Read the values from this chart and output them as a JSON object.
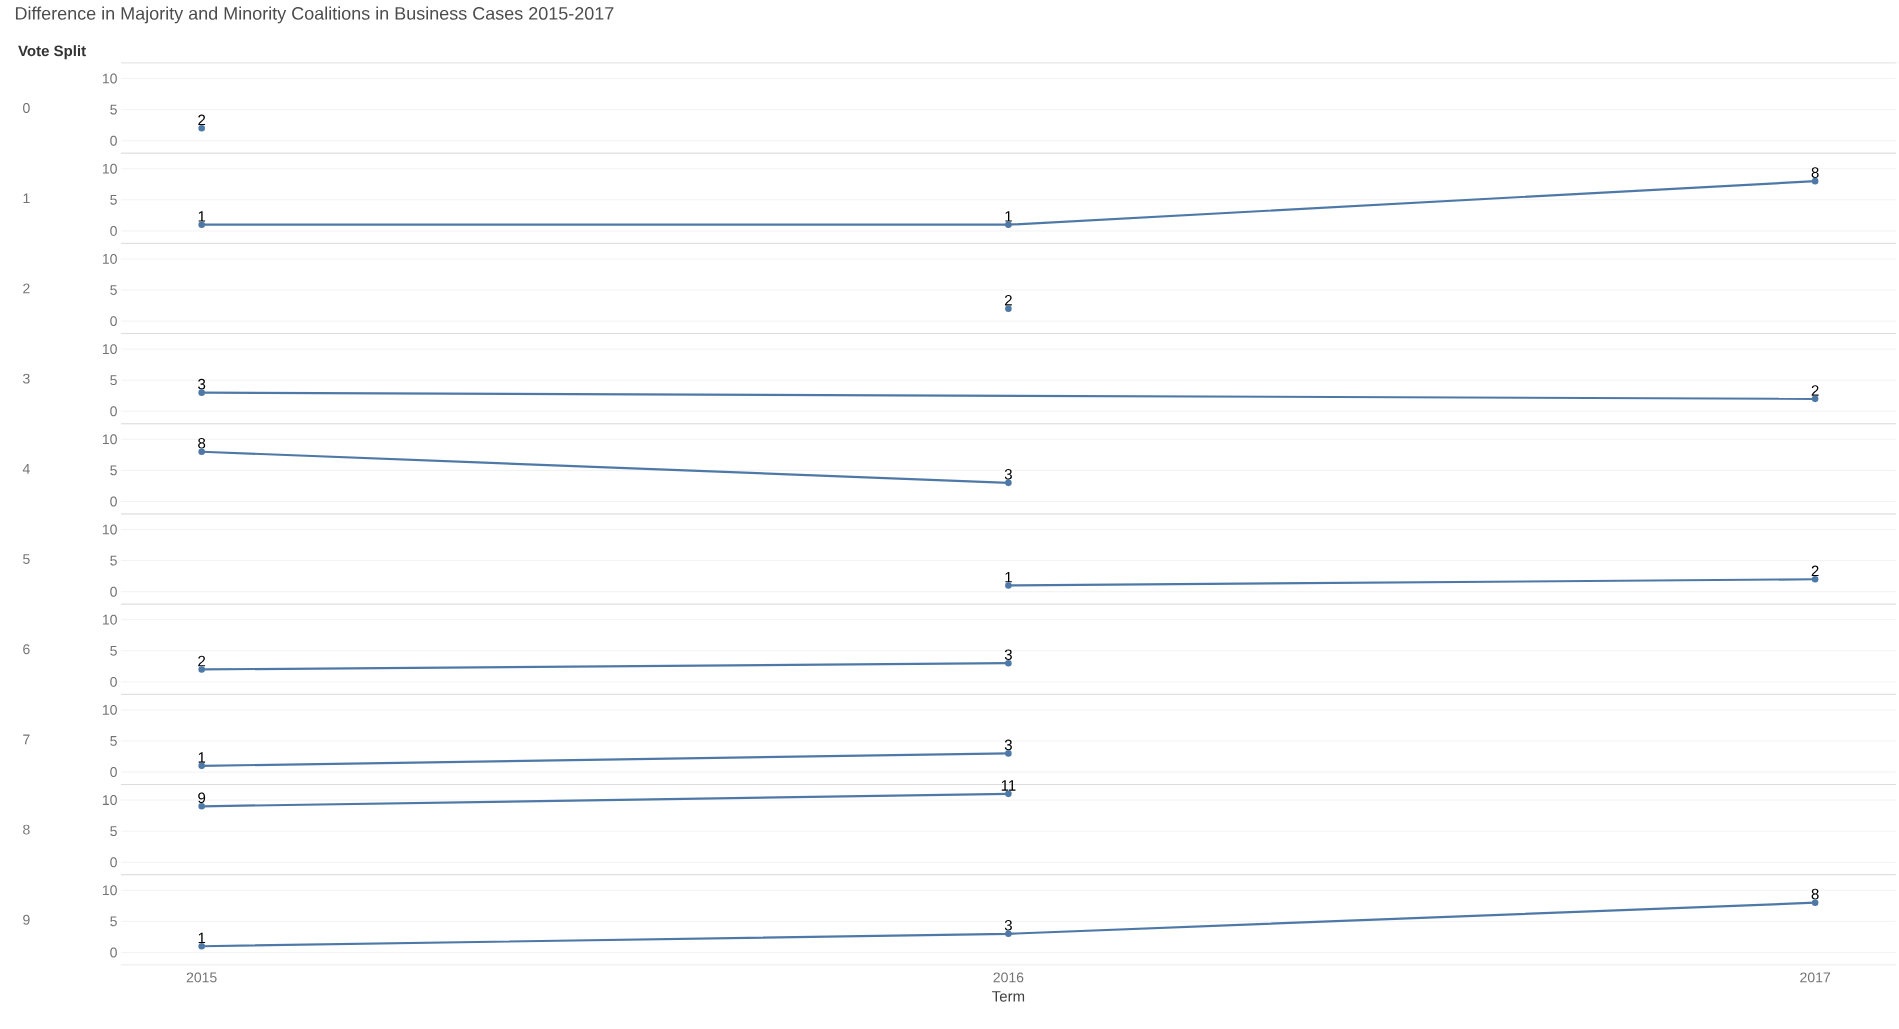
{
  "chart_data": [
    {
      "type": "line",
      "title": "Difference in Majority and Minority Coalitions in Business Cases 2015-2017",
      "annotations": [
        "Vote Split"
      ],
      "ylabel": "0",
      "x": [
        2015
      ],
      "values": [
        2
      ],
      "color": "#4e79a7",
      "xlim": [
        2014.9,
        2017.1
      ],
      "xticks": [
        2015,
        2016,
        2017
      ],
      "ylim": [
        -2,
        12.5
      ],
      "yticks": [
        0,
        5,
        10
      ],
      "grid": "y",
      "marker": "circle",
      "data_labels": true,
      "tick_labels": "y"
    },
    {
      "type": "line",
      "ylabel": "1",
      "x": [
        2015,
        2016,
        2017
      ],
      "values": [
        1,
        1,
        8
      ],
      "color": "#4e79a7",
      "xlim": [
        2014.9,
        2017.1
      ],
      "xticks": [
        2015,
        2016,
        2017
      ],
      "ylim": [
        -2,
        12.5
      ],
      "yticks": [
        0,
        5,
        10
      ],
      "grid": "y",
      "marker": "circle",
      "data_labels": true,
      "tick_labels": "y"
    },
    {
      "type": "line",
      "ylabel": "2",
      "x": [
        2016
      ],
      "values": [
        2
      ],
      "color": "#4e79a7",
      "xlim": [
        2014.9,
        2017.1
      ],
      "xticks": [
        2015,
        2016,
        2017
      ],
      "ylim": [
        -2,
        12.5
      ],
      "yticks": [
        0,
        5,
        10
      ],
      "grid": "y",
      "marker": "circle",
      "data_labels": true,
      "tick_labels": "y"
    },
    {
      "type": "line",
      "ylabel": "3",
      "x": [
        2015,
        2017
      ],
      "values": [
        3,
        2
      ],
      "color": "#4e79a7",
      "xlim": [
        2014.9,
        2017.1
      ],
      "xticks": [
        2015,
        2016,
        2017
      ],
      "ylim": [
        -2,
        12.5
      ],
      "yticks": [
        0,
        5,
        10
      ],
      "grid": "y",
      "marker": "circle",
      "data_labels": true,
      "tick_labels": "y"
    },
    {
      "type": "line",
      "ylabel": "4",
      "x": [
        2015,
        2016
      ],
      "values": [
        8,
        3
      ],
      "color": "#4e79a7",
      "xlim": [
        2014.9,
        2017.1
      ],
      "xticks": [
        2015,
        2016,
        2017
      ],
      "ylim": [
        -2,
        12.5
      ],
      "yticks": [
        0,
        5,
        10
      ],
      "grid": "y",
      "marker": "circle",
      "data_labels": true,
      "tick_labels": "y"
    },
    {
      "type": "line",
      "ylabel": "5",
      "x": [
        2016,
        2017
      ],
      "values": [
        1,
        2
      ],
      "color": "#4e79a7",
      "xlim": [
        2014.9,
        2017.1
      ],
      "xticks": [
        2015,
        2016,
        2017
      ],
      "ylim": [
        -2,
        12.5
      ],
      "yticks": [
        0,
        5,
        10
      ],
      "grid": "y",
      "marker": "circle",
      "data_labels": true,
      "tick_labels": "y"
    },
    {
      "type": "line",
      "ylabel": "6",
      "x": [
        2015,
        2016
      ],
      "values": [
        2,
        3
      ],
      "color": "#4e79a7",
      "xlim": [
        2014.9,
        2017.1
      ],
      "xticks": [
        2015,
        2016,
        2017
      ],
      "ylim": [
        -2,
        12.5
      ],
      "yticks": [
        0,
        5,
        10
      ],
      "grid": "y",
      "marker": "circle",
      "data_labels": true,
      "tick_labels": "y"
    },
    {
      "type": "line",
      "ylabel": "7",
      "x": [
        2015,
        2016
      ],
      "values": [
        1,
        3
      ],
      "color": "#4e79a7",
      "xlim": [
        2014.9,
        2017.1
      ],
      "xticks": [
        2015,
        2016,
        2017
      ],
      "ylim": [
        -2,
        12.5
      ],
      "yticks": [
        0,
        5,
        10
      ],
      "grid": "y",
      "marker": "circle",
      "data_labels": true,
      "tick_labels": "y"
    },
    {
      "type": "line",
      "ylabel": "8",
      "x": [
        2015,
        2016
      ],
      "values": [
        9,
        11
      ],
      "color": "#4e79a7",
      "xlim": [
        2014.9,
        2017.1
      ],
      "xticks": [
        2015,
        2016,
        2017
      ],
      "ylim": [
        -2,
        12.5
      ],
      "yticks": [
        0,
        5,
        10
      ],
      "grid": "y",
      "marker": "circle",
      "data_labels": true,
      "tick_labels": "y"
    },
    {
      "type": "line",
      "ylabel": "9",
      "xlabel": "Term",
      "x": [
        2015,
        2016,
        2017
      ],
      "values": [
        1,
        3,
        8
      ],
      "color": "#4e79a7",
      "xlim": [
        2014.9,
        2017.1
      ],
      "xticks": [
        2015,
        2016,
        2017
      ],
      "ylim": [
        -2,
        12.5
      ],
      "yticks": [
        0,
        5,
        10
      ],
      "grid": "y",
      "marker": "circle",
      "data_labels": true
    }
  ]
}
